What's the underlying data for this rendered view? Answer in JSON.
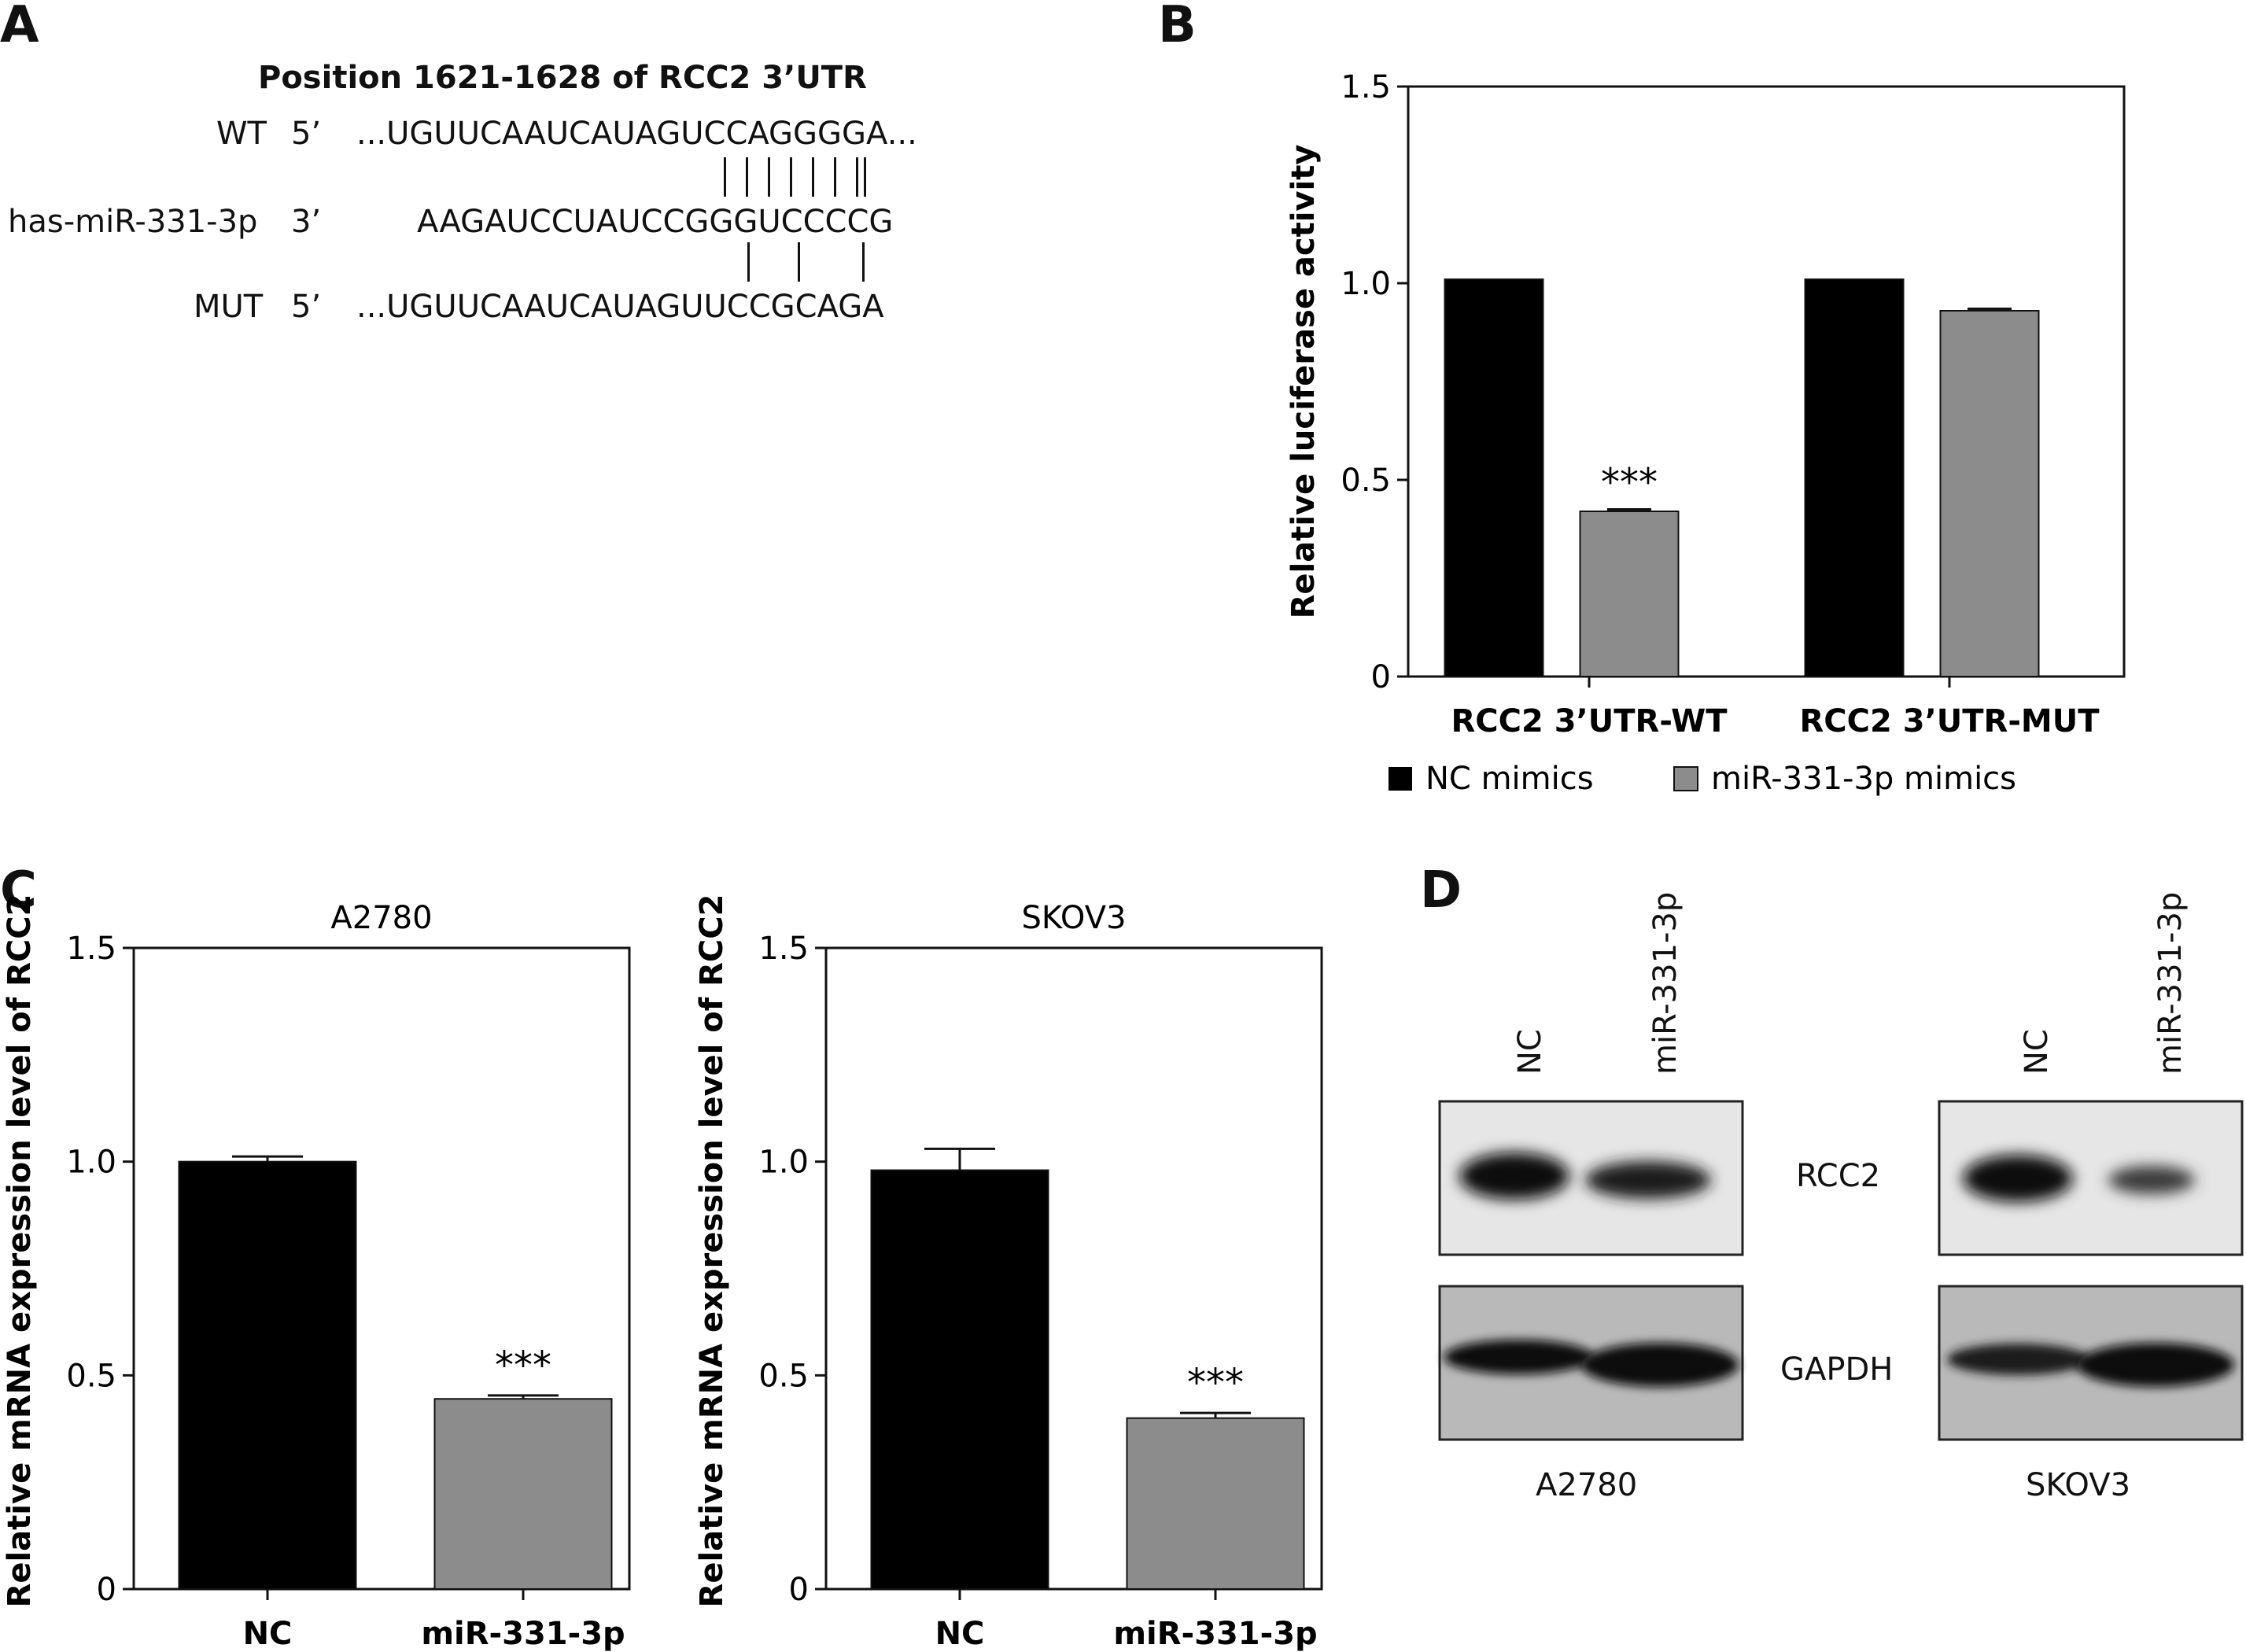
{
  "panels": {
    "a_label": "A",
    "b_label": "B",
    "c_label": "C",
    "d_label": "D"
  },
  "panel_a": {
    "title": "Position 1621-1628 of RCC2 3’UTR",
    "wt_name": "WT",
    "wt_end": "5’",
    "wt_seq": "...UGUUCAAUCAUAGUCCAGGGGA...",
    "mir_name": "has-miR-331-3p",
    "mir_end": "3’",
    "mir_seq": "AAGAUCCUAUCCGGGUCCCCG",
    "mut_name": "MUT",
    "mut_end": "5’",
    "mut_seq": "...UGUUCAAUCAUAGUUCCGCAGA"
  },
  "chart_data": [
    {
      "type": "bar",
      "panel": "B",
      "categories": [
        "RCC2 3’UTR-WT",
        "RCC2 3’UTR-MUT"
      ],
      "series": [
        {
          "name": "NC mimics",
          "values": [
            1.01,
            1.01
          ],
          "errors": [
            0,
            0
          ],
          "color": "#000000"
        },
        {
          "name": "miR-331-3p mimics",
          "values": [
            0.42,
            0.93
          ],
          "errors": [
            0.005,
            0.005
          ],
          "color": "#8c8c8c"
        }
      ],
      "annotations": [
        {
          "category": 0,
          "series": 1,
          "text": "***"
        }
      ],
      "ylabel": "Relative luciferase activity",
      "ylim": [
        0,
        1.5
      ],
      "yticks": [
        0,
        0.5,
        1.0,
        1.5
      ],
      "ytick_labels": [
        "0",
        "0.5",
        "1.0",
        "1.5"
      ],
      "legend_position": "bottom"
    },
    {
      "type": "bar",
      "panel": "C",
      "title": "A2780",
      "categories": [
        "NC",
        "miR-331-3p"
      ],
      "values": [
        1.0,
        0.445
      ],
      "errors": [
        0.012,
        0.008
      ],
      "colors": [
        "#000000",
        "#8c8c8c"
      ],
      "annotations": [
        {
          "index": 1,
          "text": "***"
        }
      ],
      "ylabel": "Relative mRNA expression level of RCC2",
      "ylim": [
        0,
        1.5
      ],
      "yticks": [
        0,
        0.5,
        1.0,
        1.5
      ],
      "ytick_labels": [
        "0",
        "0.5",
        "1.0",
        "1.5"
      ]
    },
    {
      "type": "bar",
      "panel": "C",
      "title": "SKOV3",
      "categories": [
        "NC",
        "miR-331-3p"
      ],
      "values": [
        0.98,
        0.4
      ],
      "errors": [
        0.05,
        0.012
      ],
      "colors": [
        "#000000",
        "#8c8c8c"
      ],
      "annotations": [
        {
          "index": 1,
          "text": "***"
        }
      ],
      "ylabel": "Relative mRNA expression level of RCC2",
      "ylim": [
        0,
        1.5
      ],
      "yticks": [
        0,
        0.5,
        1.0,
        1.5
      ],
      "ytick_labels": [
        "0",
        "0.5",
        "1.0",
        "1.5"
      ]
    }
  ],
  "panel_d": {
    "lane_nc": "NC",
    "lane_mir": "miR-331-3p",
    "protein_1": "RCC2",
    "protein_2": "GAPDH",
    "cell_1": "A2780",
    "cell_2": "SKOV3"
  }
}
